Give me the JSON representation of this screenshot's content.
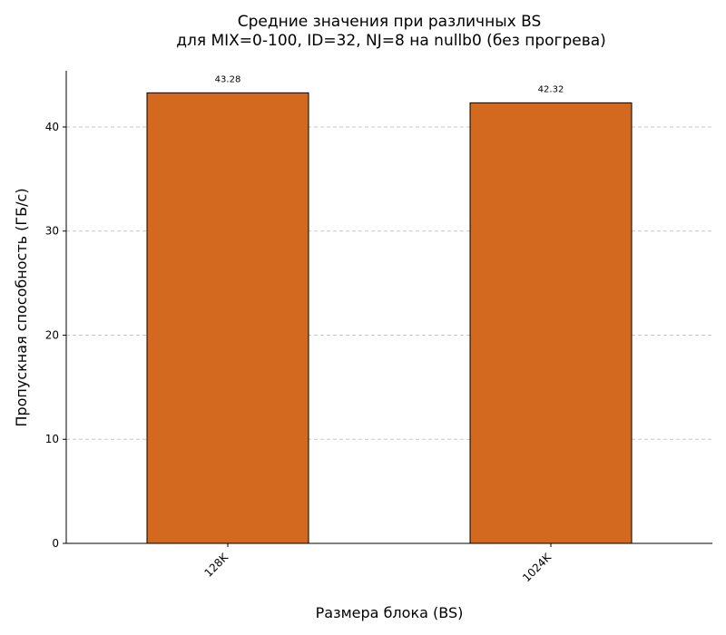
{
  "chart_data": {
    "type": "bar",
    "title_lines": [
      "Средние значения при различных BS",
      "для MIX=0-100, ID=32, NJ=8 на nullb0 (без прогрева)"
    ],
    "xlabel": "Размера блока (BS)",
    "ylabel": "Пропускная способность (ГБ/с)",
    "categories": [
      "128K",
      "1024K"
    ],
    "values": [
      43.28,
      42.32
    ],
    "value_labels": [
      "43.28",
      "42.32"
    ],
    "ylim": [
      0,
      45.4
    ],
    "yticks": [
      0,
      10,
      20,
      30,
      40
    ],
    "ytick_labels": [
      "0",
      "10",
      "20",
      "30",
      "40"
    ],
    "grid": "y-dashed",
    "bar_color": "#d2691e",
    "bar_edge_color": "#000000",
    "grid_color": "#c8c8c8",
    "legend": "none"
  }
}
